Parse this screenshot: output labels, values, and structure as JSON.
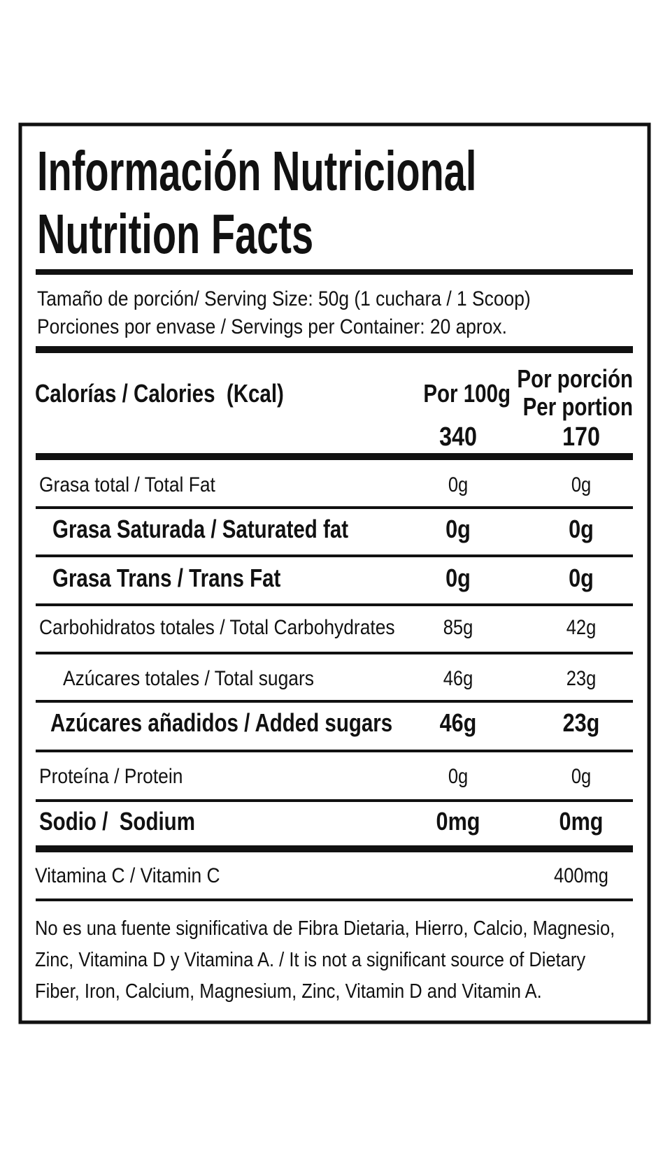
{
  "header": {
    "title_es": "Información Nutricional",
    "title_en": "Nutrition Facts"
  },
  "serving": {
    "size": "Tamaño de porción/ Serving Size: 50g (1 cuchara / 1 Scoop)",
    "per_container": "Porciones por envase / Servings per Container: 20 aprox."
  },
  "calories": {
    "label": "Calorías / Calories  (Kcal)",
    "col1_header": "Por 100g",
    "col2_header_es": "Por porción",
    "col2_header_en": "Per portion",
    "per_100g": 340,
    "per_portion": 170
  },
  "nutrients": [
    {
      "label": "Grasa total / Total Fat",
      "per_100g": "0g",
      "per_portion": "0g"
    },
    {
      "label": "Grasa Saturada / Saturated fat",
      "per_100g": "0g",
      "per_portion": "0g"
    },
    {
      "label": "Grasa Trans / Trans Fat",
      "per_100g": "0g",
      "per_portion": "0g"
    },
    {
      "label": "Carbohidratos totales / Total Carbohydrates",
      "per_100g": "85g",
      "per_portion": "42g"
    },
    {
      "label": "Azúcares totales / Total sugars",
      "per_100g": "46g",
      "per_portion": "23g"
    },
    {
      "label": "Azúcares añadidos / Added sugars",
      "per_100g": "46g",
      "per_portion": "23g"
    },
    {
      "label": "Proteína / Protein",
      "per_100g": "0g",
      "per_portion": "0g"
    },
    {
      "label": "Sodio /  Sodium",
      "per_100g": "0mg",
      "per_portion": "0mg"
    },
    {
      "label": "Vitamina C / Vitamin C",
      "per_portion": "400mg"
    }
  ],
  "footnote": {
    "lines": [
      "No es una fuente significativa de Fibra Dietaria, Hierro, Calcio, Magnesio,",
      "Zinc, Vitamina D y Vitamina A. / It is not a significant source of Dietary",
      "Fiber, Iron, Calcium, Magnesium, Zinc, Vitamin D and Vitamin A."
    ]
  }
}
